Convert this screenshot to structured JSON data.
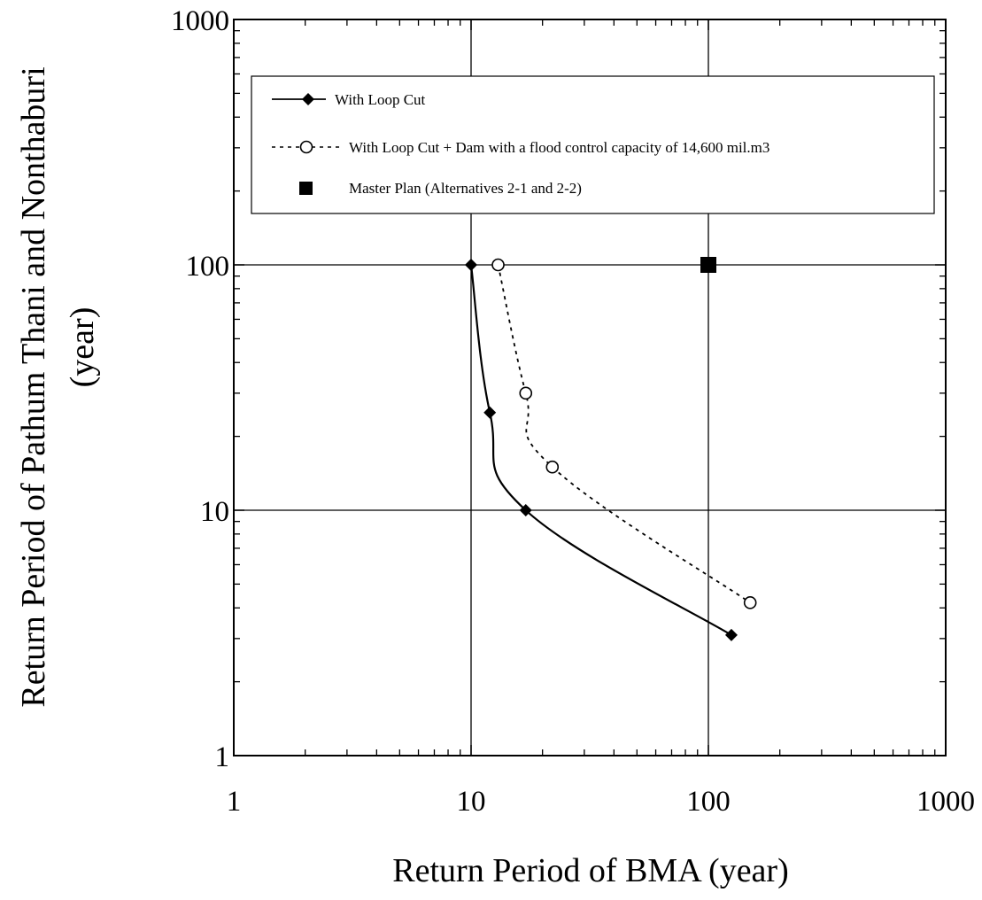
{
  "chart_data": {
    "type": "line",
    "title": "",
    "xlabel": "Return Period of BMA (year)",
    "ylabel_line1": "Return Period of Pathum Thani and Nonthaburi",
    "ylabel_line2": "(year)",
    "x_scale": "log",
    "y_scale": "log",
    "xlim": [
      1,
      1000
    ],
    "ylim": [
      1,
      1000
    ],
    "x_ticks": [
      1,
      10,
      100,
      1000
    ],
    "y_ticks": [
      1,
      10,
      100,
      1000
    ],
    "x_tick_labels": [
      "1",
      "10",
      "100",
      "1000"
    ],
    "y_tick_labels": [
      "1",
      "10",
      "100",
      "1000"
    ],
    "grid": "major",
    "legend_position": "top",
    "series": [
      {
        "name": "With Loop Cut",
        "style": "solid",
        "marker": "diamond-filled",
        "color": "#000000",
        "points": [
          {
            "x": 10,
            "y": 100
          },
          {
            "x": 12,
            "y": 25
          },
          {
            "x": 17,
            "y": 10
          },
          {
            "x": 125,
            "y": 3.1
          }
        ]
      },
      {
        "name": "With Loop Cut + Dam with a flood control capacity of 14,600 mil.m3",
        "style": "dotted",
        "marker": "circle-open",
        "color": "#000000",
        "points": [
          {
            "x": 13,
            "y": 100
          },
          {
            "x": 17,
            "y": 30
          },
          {
            "x": 22,
            "y": 15
          },
          {
            "x": 150,
            "y": 4.2
          }
        ]
      },
      {
        "name": "Master Plan (Alternatives 2-1 and 2-2)",
        "style": "none",
        "marker": "square-filled",
        "color": "#000000",
        "points": [
          {
            "x": 100,
            "y": 100
          }
        ]
      }
    ]
  }
}
